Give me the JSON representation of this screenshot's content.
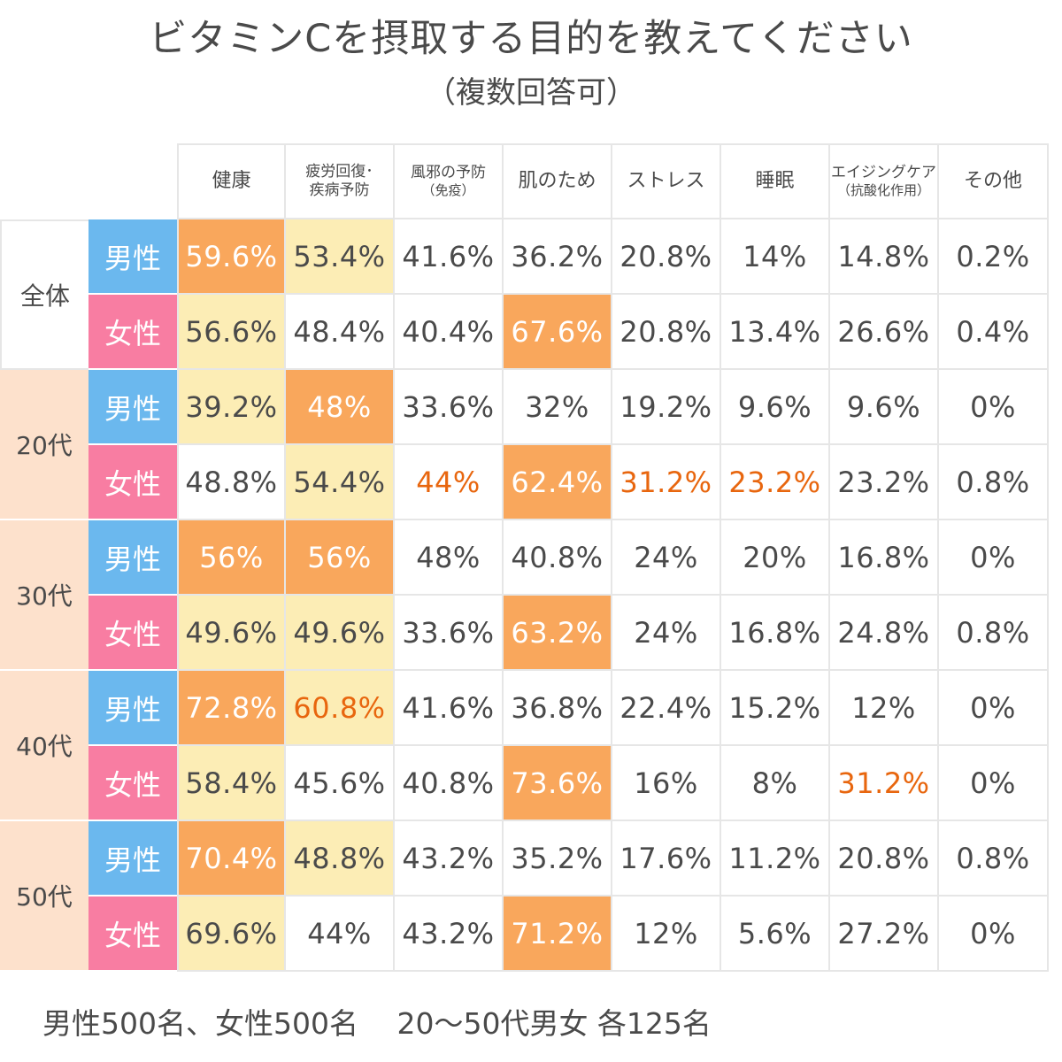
{
  "title": "ビタミンCを摂取する目的を教えてください",
  "subtitle": "（複数回答可）",
  "footer": "男性500名、女性500名　 20～50代男女 各125名",
  "colors": {
    "male": "#6bb8ee",
    "female": "#f87da2",
    "group_total": "#ffffff",
    "group_age": "#fde1cc",
    "highlight_orange": "#f9a75c",
    "highlight_yellow": "#fcedb5",
    "text_red": "#e8660e"
  },
  "chart_data": {
    "type": "table",
    "columns": [
      {
        "label": "健康",
        "sub": ""
      },
      {
        "label": "疲労回復･",
        "sub": "疾病予防"
      },
      {
        "label": "風邪の予防",
        "sub": "（免疫）"
      },
      {
        "label": "肌のため",
        "sub": ""
      },
      {
        "label": "ストレス",
        "sub": ""
      },
      {
        "label": "睡眠",
        "sub": ""
      },
      {
        "label": "エイジングケア",
        "sub": "（抗酸化作用）"
      },
      {
        "label": "その他",
        "sub": ""
      }
    ],
    "groups": [
      {
        "label": "全体",
        "bg": "total",
        "rows": [
          {
            "sex": "男性",
            "values": [
              59.6,
              53.4,
              41.6,
              36.2,
              20.8,
              14,
              14.8,
              0.2
            ],
            "text": [
              "59.6%",
              "53.4%",
              "41.6%",
              "36.2%",
              "20.8%",
              "14%",
              "14.8%",
              "0.2%"
            ],
            "fill": [
              "orange",
              "yellow",
              "",
              "",
              "",
              "",
              "",
              ""
            ],
            "red": []
          },
          {
            "sex": "女性",
            "values": [
              56.6,
              48.4,
              40.4,
              67.6,
              20.8,
              13.4,
              26.6,
              0.4
            ],
            "text": [
              "56.6%",
              "48.4%",
              "40.4%",
              "67.6%",
              "20.8%",
              "13.4%",
              "26.6%",
              "0.4%"
            ],
            "fill": [
              "yellow",
              "",
              "",
              "orange",
              "",
              "",
              "",
              ""
            ],
            "red": []
          }
        ]
      },
      {
        "label": "20代",
        "bg": "age",
        "rows": [
          {
            "sex": "男性",
            "values": [
              39.2,
              48,
              33.6,
              32,
              19.2,
              9.6,
              9.6,
              0
            ],
            "text": [
              "39.2%",
              "48%",
              "33.6%",
              "32%",
              "19.2%",
              "9.6%",
              "9.6%",
              "0%"
            ],
            "fill": [
              "yellow",
              "orange",
              "",
              "",
              "",
              "",
              "",
              ""
            ],
            "red": []
          },
          {
            "sex": "女性",
            "values": [
              48.8,
              54.4,
              44,
              62.4,
              31.2,
              23.2,
              23.2,
              0.8
            ],
            "text": [
              "48.8%",
              "54.4%",
              "44%",
              "62.4%",
              "31.2%",
              "23.2%",
              "23.2%",
              "0.8%"
            ],
            "fill": [
              "",
              "yellow",
              "",
              "orange",
              "",
              "",
              "",
              ""
            ],
            "red": [
              2,
              4,
              5
            ]
          }
        ]
      },
      {
        "label": "30代",
        "bg": "age",
        "rows": [
          {
            "sex": "男性",
            "values": [
              56,
              56,
              48,
              40.8,
              24,
              20,
              16.8,
              0
            ],
            "text": [
              "56%",
              "56%",
              "48%",
              "40.8%",
              "24%",
              "20%",
              "16.8%",
              "0%"
            ],
            "fill": [
              "orange",
              "orange",
              "",
              "",
              "",
              "",
              "",
              ""
            ],
            "red": []
          },
          {
            "sex": "女性",
            "values": [
              49.6,
              49.6,
              33.6,
              63.2,
              24,
              16.8,
              24.8,
              0.8
            ],
            "text": [
              "49.6%",
              "49.6%",
              "33.6%",
              "63.2%",
              "24%",
              "16.8%",
              "24.8%",
              "0.8%"
            ],
            "fill": [
              "yellow",
              "yellow",
              "",
              "orange",
              "",
              "",
              "",
              ""
            ],
            "red": []
          }
        ]
      },
      {
        "label": "40代",
        "bg": "age",
        "rows": [
          {
            "sex": "男性",
            "values": [
              72.8,
              60.8,
              41.6,
              36.8,
              22.4,
              15.2,
              12,
              0
            ],
            "text": [
              "72.8%",
              "60.8%",
              "41.6%",
              "36.8%",
              "22.4%",
              "15.2%",
              "12%",
              "0%"
            ],
            "fill": [
              "orange",
              "yellow",
              "",
              "",
              "",
              "",
              "",
              ""
            ],
            "red": [
              1
            ]
          },
          {
            "sex": "女性",
            "values": [
              58.4,
              45.6,
              40.8,
              73.6,
              16,
              8,
              31.2,
              0
            ],
            "text": [
              "58.4%",
              "45.6%",
              "40.8%",
              "73.6%",
              "16%",
              "8%",
              "31.2%",
              "0%"
            ],
            "fill": [
              "yellow",
              "",
              "",
              "orange",
              "",
              "",
              "",
              ""
            ],
            "red": [
              6
            ]
          }
        ]
      },
      {
        "label": "50代",
        "bg": "age",
        "rows": [
          {
            "sex": "男性",
            "values": [
              70.4,
              48.8,
              43.2,
              35.2,
              17.6,
              11.2,
              20.8,
              0.8
            ],
            "text": [
              "70.4%",
              "48.8%",
              "43.2%",
              "35.2%",
              "17.6%",
              "11.2%",
              "20.8%",
              "0.8%"
            ],
            "fill": [
              "orange",
              "yellow",
              "",
              "",
              "",
              "",
              "",
              ""
            ],
            "red": []
          },
          {
            "sex": "女性",
            "values": [
              69.6,
              44,
              43.2,
              71.2,
              12,
              5.6,
              27.2,
              0
            ],
            "text": [
              "69.6%",
              "44%",
              "43.2%",
              "71.2%",
              "12%",
              "5.6%",
              "27.2%",
              "0%"
            ],
            "fill": [
              "yellow",
              "",
              "",
              "orange",
              "",
              "",
              "",
              ""
            ],
            "red": []
          }
        ]
      }
    ]
  }
}
